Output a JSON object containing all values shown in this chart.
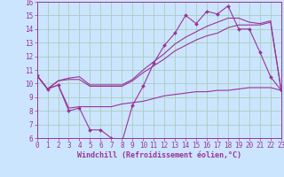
{
  "xlabel": "Windchill (Refroidissement éolien,°C)",
  "xlim": [
    0,
    23
  ],
  "ylim": [
    6,
    16
  ],
  "xticks": [
    0,
    1,
    2,
    3,
    4,
    5,
    6,
    7,
    8,
    9,
    10,
    11,
    12,
    13,
    14,
    15,
    16,
    17,
    18,
    19,
    20,
    21,
    22,
    23
  ],
  "yticks": [
    6,
    7,
    8,
    9,
    10,
    11,
    12,
    13,
    14,
    15,
    16
  ],
  "background_color": "#cce5ff",
  "grid_color": "#aaccbb",
  "line_color": "#993399",
  "line1_x": [
    0,
    1,
    2,
    3,
    4,
    5,
    6,
    7,
    8,
    9,
    10,
    11,
    12,
    13,
    14,
    15,
    16,
    17,
    18,
    19,
    20,
    21,
    22,
    23
  ],
  "line1_y": [
    10.6,
    9.6,
    9.9,
    8.0,
    8.2,
    6.6,
    6.6,
    6.0,
    5.7,
    8.4,
    9.8,
    11.5,
    12.8,
    13.7,
    15.0,
    14.4,
    15.3,
    15.1,
    15.7,
    14.0,
    14.0,
    12.3,
    10.5,
    9.5
  ],
  "line2_x": [
    0,
    1,
    2,
    3,
    4,
    5,
    6,
    7,
    8,
    9,
    10,
    11,
    12,
    13,
    14,
    15,
    16,
    17,
    18,
    19,
    20,
    21,
    22,
    23
  ],
  "line2_y": [
    10.6,
    9.6,
    10.2,
    10.3,
    10.3,
    9.8,
    9.8,
    9.8,
    9.8,
    10.2,
    10.8,
    11.3,
    11.8,
    12.4,
    12.8,
    13.2,
    13.5,
    13.7,
    14.1,
    14.3,
    14.3,
    14.3,
    14.5,
    9.5
  ],
  "line3_x": [
    0,
    1,
    2,
    3,
    4,
    5,
    6,
    7,
    8,
    9,
    10,
    11,
    12,
    13,
    14,
    15,
    16,
    17,
    18,
    19,
    20,
    21,
    22,
    23
  ],
  "line3_y": [
    10.6,
    9.6,
    10.2,
    10.4,
    10.5,
    9.9,
    9.9,
    9.9,
    9.9,
    10.3,
    11.0,
    11.6,
    12.2,
    12.9,
    13.4,
    13.8,
    14.2,
    14.5,
    14.8,
    14.8,
    14.5,
    14.4,
    14.6,
    9.5
  ],
  "line4_x": [
    0,
    1,
    2,
    3,
    4,
    5,
    6,
    7,
    8,
    9,
    10,
    11,
    12,
    13,
    14,
    15,
    16,
    17,
    18,
    19,
    20,
    21,
    22,
    23
  ],
  "line4_y": [
    10.6,
    9.6,
    9.9,
    8.2,
    8.3,
    8.3,
    8.3,
    8.3,
    8.5,
    8.6,
    8.7,
    8.9,
    9.1,
    9.2,
    9.3,
    9.4,
    9.4,
    9.5,
    9.5,
    9.6,
    9.7,
    9.7,
    9.7,
    9.5
  ],
  "tick_fontsize": 5.5,
  "xlabel_fontsize": 6.0
}
